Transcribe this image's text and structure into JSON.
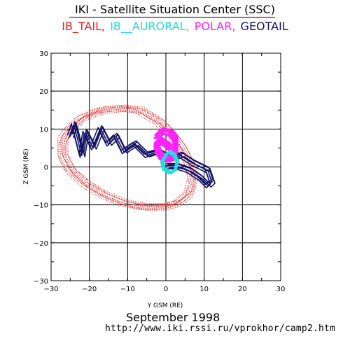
{
  "header": {
    "title": "IKI - Satellite Situation Center (SSC)"
  },
  "legend": {
    "items": [
      {
        "label": "IB_TAIL,",
        "color": "#ee2222"
      },
      {
        "label": "IB__AURORAL,",
        "color": "#22dddd"
      },
      {
        "label": "POLAR,",
        "color": "#ff22ff"
      },
      {
        "label": "GEOTAIL",
        "color": "#111166"
      }
    ]
  },
  "footer": {
    "month": "September    1998",
    "url": "http://www.iki.rssi.ru/vprokhor/camp2.htm"
  },
  "chart_data": {
    "type": "line",
    "title": "IKI - Satellite Situation Center (SSC)",
    "xlabel": "Y GSM (RE)",
    "ylabel": "Z GSM (RE)",
    "xlim": [
      -30,
      30
    ],
    "ylim": [
      -30,
      30
    ],
    "x_ticks": [
      -30,
      -20,
      -10,
      0,
      10,
      20,
      30
    ],
    "y_ticks": [
      -30,
      -20,
      -10,
      0,
      10,
      20,
      30
    ],
    "x_tick_labels": [
      "−30",
      "−20",
      "−10",
      "0",
      "10",
      "20",
      "30"
    ],
    "y_tick_labels": [
      "−30",
      "−20",
      "−10",
      "0",
      "10",
      "20",
      "30"
    ],
    "grid": true,
    "series": [
      {
        "name": "IB_TAIL",
        "color": "#ee2222",
        "style": "dotted-loops",
        "x": [
          -25,
          -22,
          -17,
          -12,
          -7,
          -2,
          1,
          4,
          6,
          7,
          6,
          3,
          -1,
          -6,
          -11,
          -16,
          -21,
          -25,
          -27,
          -27,
          -26,
          -25
        ],
        "y": [
          10,
          13,
          15,
          15.5,
          15,
          12,
          9,
          5,
          1,
          -3,
          -7,
          -9.5,
          -10.5,
          -10.5,
          -9.5,
          -7.5,
          -4.5,
          -1,
          3,
          7,
          9,
          10
        ]
      },
      {
        "name": "GEOTAIL",
        "color": "#111166",
        "style": "solid-loops",
        "x": [
          -25,
          -24,
          -23,
          -22,
          -21,
          -19,
          -17,
          -15,
          -13,
          -11,
          -8,
          -5,
          -2,
          1,
          4,
          7,
          9,
          11,
          12,
          11,
          9,
          6,
          3,
          0
        ],
        "y": [
          8,
          11,
          7,
          3,
          9,
          5,
          10,
          6,
          8,
          4,
          6,
          3,
          4,
          2,
          3,
          1,
          0,
          -1,
          -4,
          -5,
          -3,
          -1,
          0,
          0
        ]
      },
      {
        "name": "POLAR",
        "color": "#ff22ff",
        "style": "filled-loops",
        "x": [
          -2.5,
          -1,
          1,
          2.5,
          2.5,
          2,
          0.5,
          -1,
          -2,
          -2.5,
          -1.5,
          0,
          1.2
        ],
        "y": [
          8,
          9.5,
          9,
          7.5,
          5,
          3,
          2,
          2.5,
          4,
          6,
          7,
          6,
          5
        ]
      },
      {
        "name": "IB_AURORAL",
        "color": "#22dddd",
        "style": "small-loops",
        "x": [
          0.5,
          2,
          3,
          2.5,
          1,
          -0.5,
          -1,
          0.5
        ],
        "y": [
          4,
          3.5,
          1.5,
          -0.5,
          -1.5,
          -0.5,
          1.5,
          4
        ]
      }
    ]
  }
}
